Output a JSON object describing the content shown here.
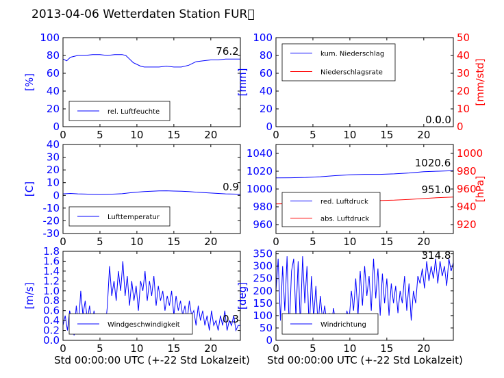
{
  "title": "2013-04-06 Wetterdaten Station FUR\u0000",
  "xlabel": "Std 00:00:00 UTC (+-22 Std Lokalzeit)",
  "colors": {
    "blue": "#0000ff",
    "red": "#ff0000",
    "axis": "#000000",
    "light_blue": "#8080ff"
  },
  "chart_data": [
    {
      "id": "humidity",
      "type": "line",
      "xlim": [
        0,
        24
      ],
      "ylim": [
        0,
        100
      ],
      "xticks": [
        0,
        5,
        10,
        15,
        20
      ],
      "yticks": [
        0,
        20,
        40,
        60,
        80,
        100
      ],
      "ylabel": "[%]",
      "legend_placement": "lower-left",
      "annotation": "76.2",
      "series": [
        {
          "name": "rel. Luftfeuchte",
          "color": "#0000ff",
          "x": [
            0,
            0.5,
            1,
            2,
            3,
            4,
            5,
            6,
            7,
            8,
            8.5,
            9,
            9.5,
            10,
            10.5,
            11,
            12,
            13,
            14,
            15,
            16,
            17,
            17.5,
            18,
            19,
            20,
            21,
            22,
            23,
            24
          ],
          "y": [
            76,
            74,
            78,
            80,
            80,
            81,
            81,
            80,
            81,
            81,
            80,
            76,
            72,
            70,
            68,
            67,
            67,
            67,
            68,
            67,
            67,
            69,
            71,
            73,
            74,
            75,
            75,
            76,
            76,
            76
          ]
        }
      ]
    },
    {
      "id": "precipitation",
      "type": "line",
      "xlim": [
        0,
        24
      ],
      "ylim": [
        0,
        100
      ],
      "ylim_right": [
        0,
        50
      ],
      "xticks": [
        0,
        5,
        10,
        15,
        20
      ],
      "yticks": [
        0,
        20,
        40,
        60,
        80,
        100
      ],
      "yticks_right": [
        0,
        10,
        20,
        30,
        40,
        50
      ],
      "ylabel": "[mm]",
      "ylabel_right": "[mm/std]",
      "legend_placement": "upper-left",
      "annotations": [
        "0.0",
        "0.0"
      ],
      "series": [
        {
          "name": "kum. Niederschlag",
          "color": "#0000ff",
          "axis": "left",
          "x": [
            0,
            24
          ],
          "y": [
            0,
            0
          ]
        },
        {
          "name": "Niederschlagsrate",
          "color": "#ff0000",
          "axis": "right",
          "x": [
            0,
            24
          ],
          "y": [
            0,
            0
          ]
        }
      ]
    },
    {
      "id": "temperature",
      "type": "line",
      "xlim": [
        0,
        24
      ],
      "ylim": [
        -30,
        40
      ],
      "xticks": [
        0,
        5,
        10,
        15,
        20
      ],
      "yticks": [
        -30,
        -20,
        -10,
        0,
        10,
        20,
        30,
        40
      ],
      "ylabel": "[C]",
      "legend_placement": "lower-left",
      "annotation": "0.9",
      "series": [
        {
          "name": "Lufttemperatur",
          "color": "#0000ff",
          "x": [
            0,
            1,
            2,
            3,
            4,
            5,
            6,
            7,
            8,
            9,
            10,
            11,
            12,
            13,
            14,
            15,
            16,
            17,
            18,
            19,
            20,
            21,
            22,
            23,
            24
          ],
          "y": [
            1.2,
            1.5,
            1.2,
            1.0,
            0.8,
            0.7,
            0.8,
            1.0,
            1.3,
            2.0,
            2.5,
            3.0,
            3.2,
            3.5,
            3.6,
            3.4,
            3.2,
            3.0,
            2.5,
            2.2,
            1.8,
            1.5,
            1.2,
            1.0,
            0.9
          ]
        }
      ]
    },
    {
      "id": "pressure",
      "type": "line",
      "xlim": [
        0,
        24
      ],
      "ylim": [
        950,
        1050
      ],
      "ylim_right": [
        910,
        1010
      ],
      "xticks": [
        0,
        5,
        10,
        15,
        20
      ],
      "yticks": [
        960,
        980,
        1000,
        1020,
        1040
      ],
      "yticks_right": [
        920,
        940,
        960,
        980,
        1000
      ],
      "ylabel_right": "[hPa]",
      "legend_placement": "lower-left",
      "annotations": [
        "1020.6",
        "951.0"
      ],
      "series": [
        {
          "name": "red. Luftdruck",
          "color": "#0000ff",
          "axis": "left",
          "x": [
            0,
            2,
            4,
            6,
            8,
            10,
            12,
            14,
            16,
            18,
            20,
            22,
            24
          ],
          "y": [
            1012.5,
            1012.6,
            1013,
            1013.8,
            1015,
            1016,
            1016.5,
            1016.5,
            1017,
            1018,
            1019.5,
            1020,
            1020.6
          ]
        },
        {
          "name": "abs. Luftdruck",
          "color": "#ff0000",
          "axis": "right",
          "x": [
            0,
            2,
            4,
            6,
            8,
            10,
            12,
            14,
            16,
            18,
            20,
            22,
            24
          ],
          "y": [
            943.2,
            943.5,
            944,
            944.8,
            945.5,
            946.2,
            946.6,
            947,
            947.5,
            948.3,
            949.3,
            950.3,
            951.0
          ]
        }
      ]
    },
    {
      "id": "wind_speed",
      "type": "line",
      "xlim": [
        0,
        24
      ],
      "ylim": [
        0,
        1.8
      ],
      "xticks": [
        0,
        5,
        10,
        15,
        20
      ],
      "yticks": [
        0.0,
        0.2,
        0.4,
        0.6,
        0.8,
        1.0,
        1.2,
        1.4,
        1.6,
        1.8
      ],
      "ylabel": "[m/s]",
      "legend_placement": "lower-left",
      "annotation": "0.3",
      "series": [
        {
          "name": "Windgeschwindigkeit",
          "color": "#0000ff",
          "x": [
            0,
            0.3,
            0.6,
            0.9,
            1.2,
            1.5,
            1.8,
            2.1,
            2.4,
            2.7,
            3.0,
            3.3,
            3.6,
            3.9,
            4.2,
            4.5,
            4.8,
            5.1,
            5.4,
            5.7,
            6.0,
            6.3,
            6.6,
            6.9,
            7.2,
            7.5,
            7.8,
            8.1,
            8.4,
            8.7,
            9.0,
            9.3,
            9.6,
            9.9,
            10.2,
            10.5,
            10.8,
            11.1,
            11.4,
            11.7,
            12.0,
            12.3,
            12.6,
            12.9,
            13.2,
            13.5,
            13.8,
            14.1,
            14.4,
            14.7,
            15.0,
            15.3,
            15.6,
            15.9,
            16.2,
            16.5,
            16.8,
            17.1,
            17.4,
            17.7,
            18.0,
            18.3,
            18.6,
            18.9,
            19.2,
            19.5,
            19.8,
            20.1,
            20.4,
            20.7,
            21.0,
            21.3,
            21.6,
            21.9,
            22.2,
            22.5,
            22.8,
            23.1,
            23.4,
            23.7,
            24.0
          ],
          "y": [
            0.3,
            0.5,
            0.2,
            0.6,
            0.4,
            0.1,
            0.7,
            0.3,
            1.0,
            0.5,
            0.8,
            0.4,
            0.7,
            0.3,
            0.6,
            0.2,
            0.5,
            0.3,
            0.4,
            0.2,
            0.7,
            1.5,
            0.9,
            1.2,
            0.8,
            1.4,
            1.0,
            1.6,
            0.9,
            1.3,
            0.7,
            1.2,
            0.8,
            1.1,
            0.6,
            1.2,
            1.0,
            1.4,
            0.8,
            1.2,
            0.9,
            1.3,
            0.7,
            1.1,
            0.8,
            1.0,
            0.6,
            0.9,
            0.7,
            1.0,
            0.5,
            0.9,
            0.6,
            0.8,
            0.5,
            0.7,
            0.4,
            0.8,
            0.5,
            0.6,
            0.3,
            0.7,
            0.4,
            0.6,
            0.3,
            0.5,
            0.2,
            0.6,
            0.3,
            0.4,
            0.2,
            0.5,
            0.3,
            0.6,
            0.2,
            0.4,
            0.3,
            0.5,
            0.2,
            0.3,
            0.3
          ]
        }
      ]
    },
    {
      "id": "wind_direction",
      "type": "line",
      "xlim": [
        0,
        24
      ],
      "ylim": [
        0,
        360
      ],
      "xticks": [
        0,
        5,
        10,
        15,
        20
      ],
      "yticks": [
        0,
        50,
        100,
        150,
        200,
        250,
        300,
        350
      ],
      "ylabel": "[deg]",
      "legend_placement": "lower-left",
      "annotation": "314.8",
      "series": [
        {
          "name": "Windrichtung",
          "color": "#0000ff",
          "x": [
            0,
            0.3,
            0.6,
            0.9,
            1.2,
            1.5,
            1.8,
            2.1,
            2.4,
            2.7,
            3.0,
            3.3,
            3.6,
            3.9,
            4.2,
            4.5,
            4.8,
            5.1,
            5.4,
            5.7,
            6.0,
            6.3,
            6.6,
            6.9,
            7.2,
            7.5,
            7.8,
            8.1,
            8.4,
            8.7,
            9.0,
            9.3,
            9.6,
            9.9,
            10.2,
            10.5,
            10.8,
            11.1,
            11.4,
            11.7,
            12.0,
            12.3,
            12.6,
            12.9,
            13.2,
            13.5,
            13.8,
            14.1,
            14.4,
            14.7,
            15.0,
            15.3,
            15.6,
            15.9,
            16.2,
            16.5,
            16.8,
            17.1,
            17.4,
            17.7,
            18.0,
            18.3,
            18.6,
            18.9,
            19.2,
            19.5,
            19.8,
            20.1,
            20.4,
            20.7,
            21.0,
            21.3,
            21.6,
            21.9,
            22.2,
            22.5,
            22.8,
            23.1,
            23.4,
            23.7,
            24.0
          ],
          "y": [
            200,
            330,
            80,
            300,
            120,
            340,
            40,
            280,
            330,
            90,
            320,
            60,
            340,
            150,
            300,
            30,
            260,
            90,
            220,
            60,
            180,
            80,
            140,
            60,
            110,
            70,
            130,
            50,
            100,
            60,
            90,
            40,
            120,
            80,
            200,
            120,
            250,
            100,
            280,
            140,
            300,
            180,
            260,
            120,
            330,
            170,
            290,
            100,
            270,
            150,
            250,
            100,
            230,
            150,
            220,
            110,
            200,
            150,
            260,
            120,
            230,
            80,
            200,
            150,
            260,
            230,
            290,
            210,
            320,
            240,
            300,
            250,
            330,
            230,
            320,
            260,
            300,
            220,
            330,
            280,
            315
          ]
        }
      ]
    }
  ]
}
